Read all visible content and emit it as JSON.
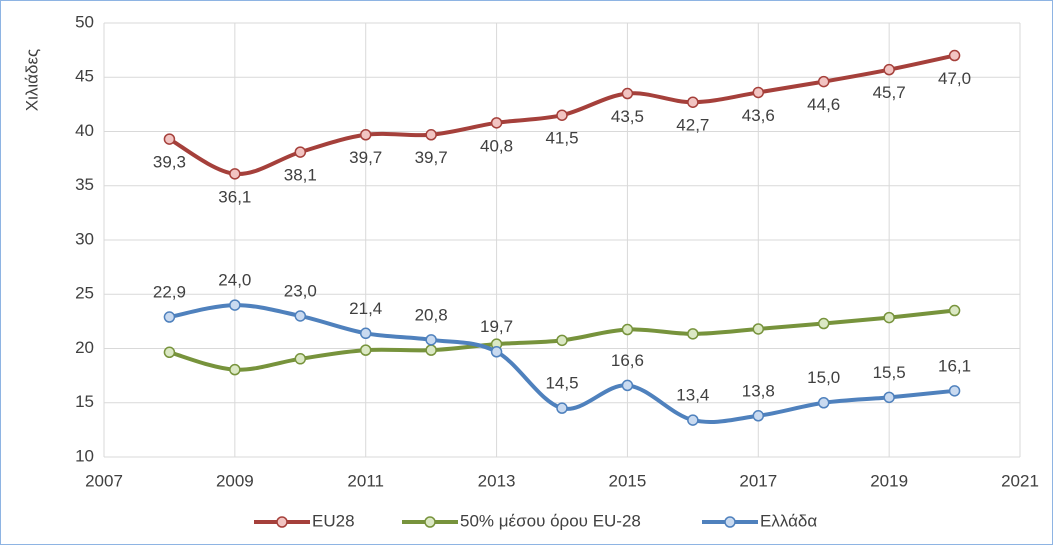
{
  "chart_data": {
    "type": "line",
    "y_label": "Χιλιάδες",
    "x": [
      2008,
      2009,
      2010,
      2011,
      2012,
      2013,
      2014,
      2015,
      2016,
      2017,
      2018,
      2019,
      2020
    ],
    "xlim": [
      2007,
      2021
    ],
    "xticks": [
      2007,
      2009,
      2011,
      2013,
      2015,
      2017,
      2019,
      2021
    ],
    "ylim": [
      10,
      50
    ],
    "yticks": [
      10,
      15,
      20,
      25,
      30,
      35,
      40,
      45,
      50
    ],
    "grid": true,
    "smooth": true,
    "legend": "bottom",
    "series": [
      {
        "name": "EU28",
        "color": "#a5403b",
        "marker_fill": "#f2c4c2",
        "values": [
          39.3,
          36.1,
          38.1,
          39.7,
          39.7,
          40.8,
          41.5,
          43.5,
          42.7,
          43.6,
          44.6,
          45.7,
          47.0
        ],
        "value_labels": [
          "39,3",
          "36,1",
          "38,1",
          "39,7",
          "39,7",
          "40,8",
          "41,5",
          "43,5",
          "42,7",
          "43,6",
          "44,6",
          "45,7",
          "47,0"
        ],
        "label_side": "below"
      },
      {
        "name": "50% μέσου όρου EU-28",
        "color": "#77933c",
        "marker_fill": "#dbe8c4",
        "values": [
          19.65,
          18.05,
          19.05,
          19.85,
          19.85,
          20.4,
          20.75,
          21.75,
          21.35,
          21.8,
          22.3,
          22.85,
          23.5
        ]
      },
      {
        "name": "Ελλάδα",
        "color": "#4f81bd",
        "marker_fill": "#c9daf0",
        "values": [
          22.9,
          24.0,
          23.0,
          21.4,
          20.8,
          19.7,
          14.5,
          16.6,
          13.4,
          13.8,
          15.0,
          15.5,
          16.1
        ],
        "value_labels": [
          "22,9",
          "24,0",
          "23,0",
          "21,4",
          "20,8",
          "19,7",
          "14,5",
          "16,6",
          "13,4",
          "13,8",
          "15,0",
          "15,5",
          "16,1"
        ],
        "label_side": "above"
      }
    ]
  }
}
